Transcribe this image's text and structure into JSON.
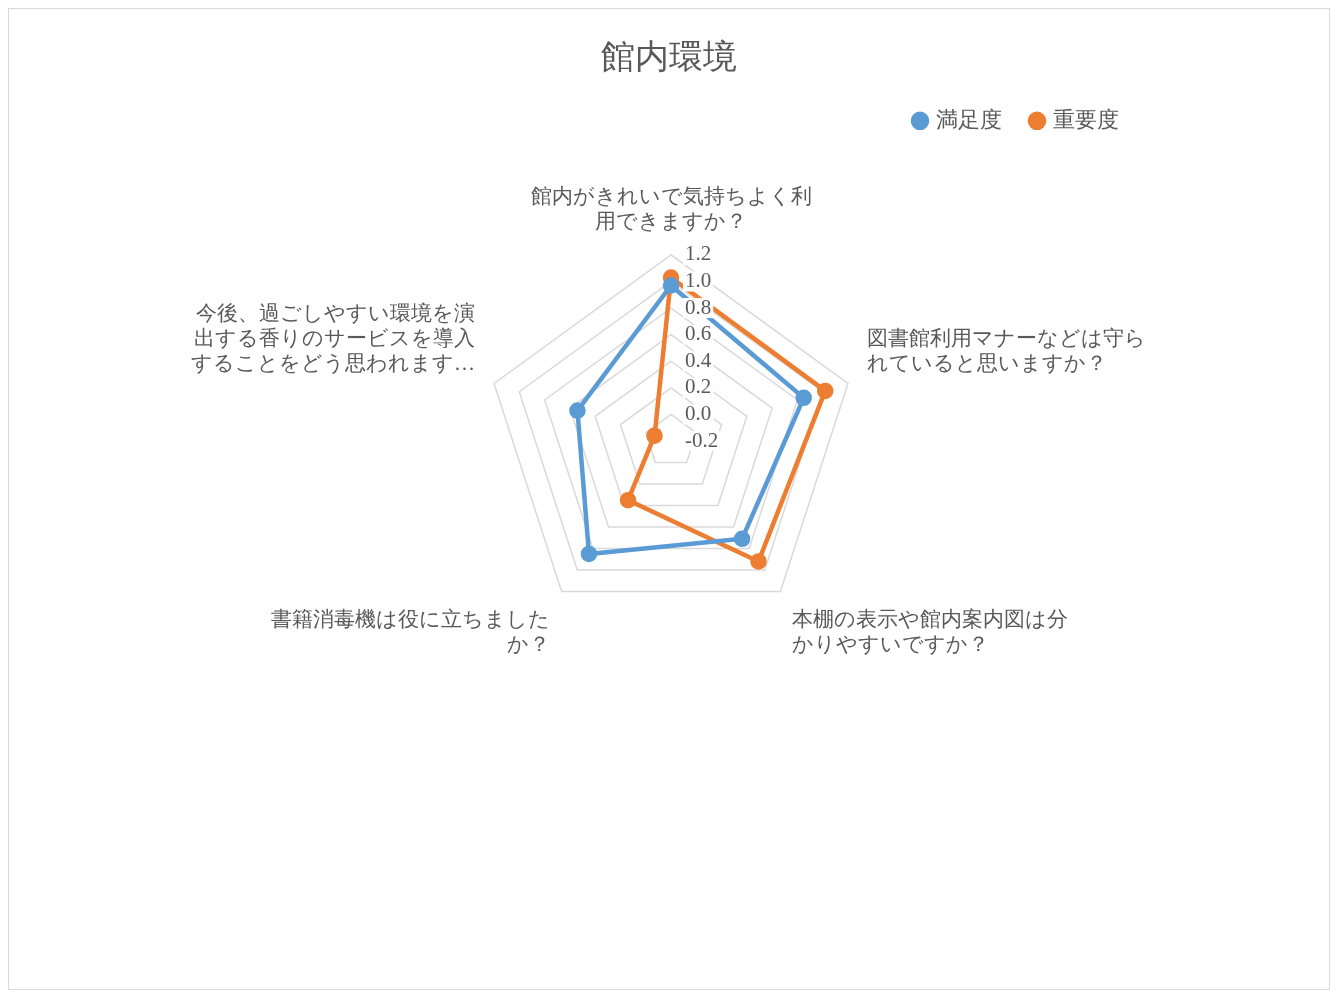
{
  "chart_data": {
    "type": "radar",
    "title": "館内環境",
    "categories": [
      "館内がきれいで気持ちよく利用できますか？",
      "図書館利用マナーなどは守られていると思いますか？",
      "本棚の表示や館内案内図は分かりやすいですか？",
      "書籍消毒機は役に立ちましたか？",
      "今後、過ごしやすい環境を演出する香りのサービスを導入することをどう思われます…"
    ],
    "series": [
      {
        "name": "満足度",
        "color": "#5b9bd5",
        "values": [
          0.97,
          0.85,
          0.71,
          0.85,
          0.54
        ]
      },
      {
        "name": "重要度",
        "color": "#ed7d31",
        "values": [
          1.03,
          1.02,
          0.92,
          0.35,
          -0.07
        ]
      }
    ],
    "ylim": [
      -0.2,
      1.2
    ],
    "yticks": [
      -0.2,
      {
        "value": 0,
        "label": "0.0"
      },
      0.2,
      0.4,
      0.6,
      0.8,
      {
        "value": 1,
        "label": "1.0"
      },
      1.2
    ],
    "grid": true,
    "legend": "top right",
    "marker": "circle",
    "line_style": "solid"
  }
}
